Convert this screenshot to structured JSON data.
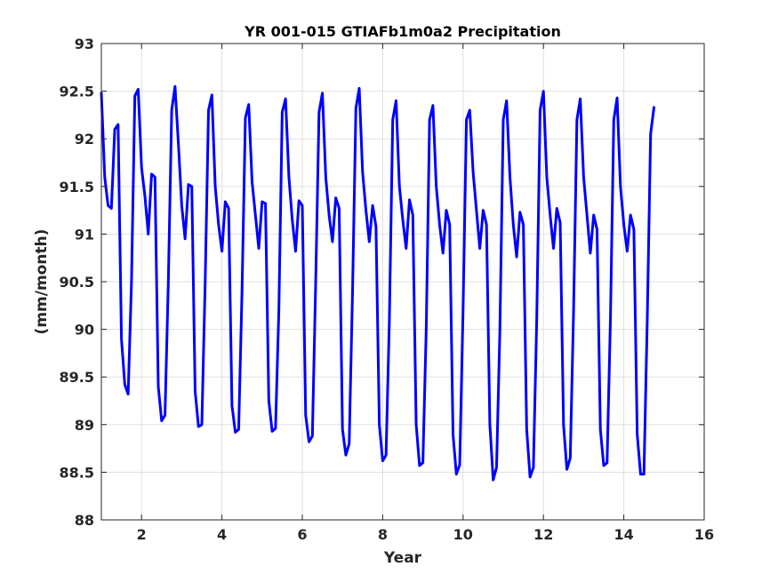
{
  "chart_data": {
    "type": "line",
    "title": "YR 001-015 GTIAFb1m0a2 Precipitation",
    "xlabel": "Year",
    "ylabel": "(mm/month)",
    "xlim": [
      1,
      16
    ],
    "ylim": [
      88,
      93
    ],
    "xticks": [
      2,
      4,
      6,
      8,
      10,
      12,
      14,
      16
    ],
    "xtick_labels": [
      "2",
      "4",
      "6",
      "8",
      "10",
      "12",
      "14",
      "16"
    ],
    "yticks": [
      88,
      88.5,
      89,
      89.5,
      90,
      90.5,
      91,
      91.5,
      92,
      92.5,
      93
    ],
    "ytick_labels": [
      "88",
      "88.5",
      "89",
      "89.5",
      "90",
      "90.5",
      "91",
      "91.5",
      "92",
      "92.5",
      "93"
    ],
    "grid": true,
    "line_color": "#0000ff",
    "series": [
      {
        "x_start": 1.0,
        "x_step": 0.083333,
        "values": [
          92.48,
          91.6,
          91.3,
          91.27,
          92.1,
          92.15,
          89.9,
          89.42,
          89.32,
          90.5,
          92.45,
          92.52,
          91.7,
          91.4,
          91.0,
          91.63,
          91.6,
          89.4,
          89.04,
          89.1,
          90.5,
          92.3,
          92.55,
          91.95,
          91.3,
          90.95,
          91.52,
          91.5,
          89.35,
          88.98,
          89.0,
          90.5,
          92.3,
          92.46,
          91.5,
          91.1,
          90.82,
          91.34,
          91.27,
          89.2,
          88.92,
          88.95,
          90.4,
          92.22,
          92.36,
          91.55,
          91.2,
          90.85,
          91.34,
          91.32,
          89.25,
          88.93,
          88.96,
          90.2,
          92.28,
          92.42,
          91.6,
          91.15,
          90.82,
          91.35,
          91.3,
          89.1,
          88.82,
          88.88,
          90.5,
          92.28,
          92.48,
          91.6,
          91.2,
          90.92,
          91.38,
          91.27,
          88.95,
          88.68,
          88.8,
          90.4,
          92.32,
          92.53,
          91.65,
          91.25,
          90.92,
          91.3,
          91.08,
          89.0,
          88.62,
          88.68,
          90.1,
          92.2,
          92.4,
          91.5,
          91.15,
          90.85,
          91.36,
          91.2,
          89.0,
          88.57,
          88.6,
          90.0,
          92.2,
          92.35,
          91.5,
          91.1,
          90.8,
          91.25,
          91.1,
          88.9,
          88.48,
          88.58,
          90.2,
          92.2,
          92.3,
          91.65,
          91.25,
          90.85,
          91.25,
          91.1,
          89.0,
          88.42,
          88.55,
          90.0,
          92.2,
          92.4,
          91.6,
          91.1,
          90.76,
          91.23,
          91.1,
          88.95,
          88.45,
          88.55,
          90.1,
          92.3,
          92.5,
          91.6,
          91.2,
          90.85,
          91.27,
          91.12,
          89.0,
          88.53,
          88.65,
          90.2,
          92.2,
          92.42,
          91.6,
          91.2,
          90.8,
          91.2,
          91.05,
          88.95,
          88.57,
          88.6,
          90.1,
          92.2,
          92.43,
          91.5,
          91.1,
          90.82,
          91.2,
          91.05,
          88.9,
          88.48,
          88.48,
          90.1,
          92.05,
          92.33
        ]
      }
    ]
  }
}
